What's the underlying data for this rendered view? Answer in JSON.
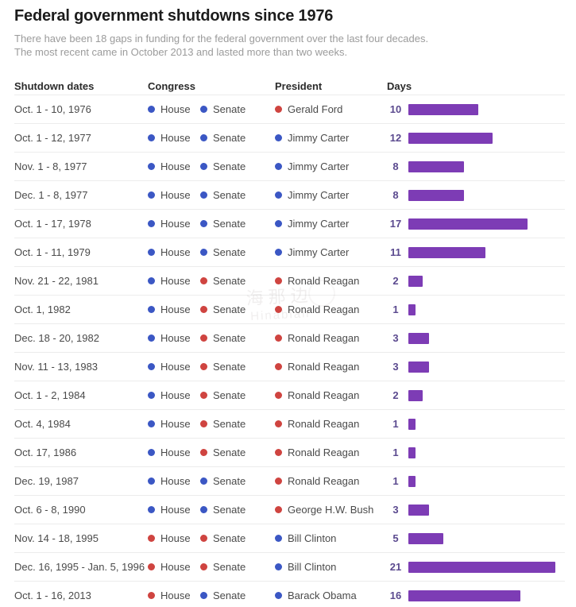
{
  "page": {
    "title": "Federal government shutdowns since 1976",
    "subtitle_line1": "There have been 18 gaps in funding for the federal government over the last four decades.",
    "subtitle_line2": "The most recent came in October 2013 and lasted more than two weeks."
  },
  "columns": {
    "dates": "Shutdown dates",
    "congress": "Congress",
    "president": "President",
    "days": "Days"
  },
  "labels": {
    "house": "House",
    "senate": "Senate"
  },
  "party_colors": {
    "democrat": "#3b57c4",
    "republican": "#cf4440"
  },
  "bar_color": "#7d3cb5",
  "day_number_color": "#5b4a8f",
  "watermark": {
    "line1": "海那边",
    "line2": "Hinabian"
  },
  "rows": [
    {
      "dates": "Oct. 1 - 10, 1976",
      "house_party": "democrat",
      "senate_party": "democrat",
      "president": "Gerald Ford",
      "president_party": "republican",
      "days": 10
    },
    {
      "dates": "Oct. 1 - 12, 1977",
      "house_party": "democrat",
      "senate_party": "democrat",
      "president": "Jimmy Carter",
      "president_party": "democrat",
      "days": 12
    },
    {
      "dates": "Nov. 1 - 8, 1977",
      "house_party": "democrat",
      "senate_party": "democrat",
      "president": "Jimmy Carter",
      "president_party": "democrat",
      "days": 8
    },
    {
      "dates": "Dec. 1 - 8, 1977",
      "house_party": "democrat",
      "senate_party": "democrat",
      "president": "Jimmy Carter",
      "president_party": "democrat",
      "days": 8
    },
    {
      "dates": "Oct. 1 - 17, 1978",
      "house_party": "democrat",
      "senate_party": "democrat",
      "president": "Jimmy Carter",
      "president_party": "democrat",
      "days": 17
    },
    {
      "dates": "Oct. 1 - 11, 1979",
      "house_party": "democrat",
      "senate_party": "democrat",
      "president": "Jimmy Carter",
      "president_party": "democrat",
      "days": 11
    },
    {
      "dates": "Nov. 21 - 22, 1981",
      "house_party": "democrat",
      "senate_party": "republican",
      "president": "Ronald Reagan",
      "president_party": "republican",
      "days": 2
    },
    {
      "dates": "Oct. 1, 1982",
      "house_party": "democrat",
      "senate_party": "republican",
      "president": "Ronald Reagan",
      "president_party": "republican",
      "days": 1
    },
    {
      "dates": "Dec. 18 - 20, 1982",
      "house_party": "democrat",
      "senate_party": "republican",
      "president": "Ronald Reagan",
      "president_party": "republican",
      "days": 3
    },
    {
      "dates": "Nov. 11 - 13, 1983",
      "house_party": "democrat",
      "senate_party": "republican",
      "president": "Ronald Reagan",
      "president_party": "republican",
      "days": 3
    },
    {
      "dates": "Oct. 1 - 2, 1984",
      "house_party": "democrat",
      "senate_party": "republican",
      "president": "Ronald Reagan",
      "president_party": "republican",
      "days": 2
    },
    {
      "dates": "Oct. 4, 1984",
      "house_party": "democrat",
      "senate_party": "republican",
      "president": "Ronald Reagan",
      "president_party": "republican",
      "days": 1
    },
    {
      "dates": "Oct. 17, 1986",
      "house_party": "democrat",
      "senate_party": "republican",
      "president": "Ronald Reagan",
      "president_party": "republican",
      "days": 1
    },
    {
      "dates": "Dec. 19, 1987",
      "house_party": "democrat",
      "senate_party": "democrat",
      "president": "Ronald Reagan",
      "president_party": "republican",
      "days": 1
    },
    {
      "dates": "Oct. 6 - 8, 1990",
      "house_party": "democrat",
      "senate_party": "democrat",
      "president": "George H.W. Bush",
      "president_party": "republican",
      "days": 3
    },
    {
      "dates": "Nov. 14 - 18, 1995",
      "house_party": "republican",
      "senate_party": "republican",
      "president": "Bill Clinton",
      "president_party": "democrat",
      "days": 5
    },
    {
      "dates": "Dec. 16, 1995 - Jan. 5, 1996",
      "house_party": "republican",
      "senate_party": "republican",
      "president": "Bill Clinton",
      "president_party": "democrat",
      "days": 21
    },
    {
      "dates": "Oct. 1 - 16, 2013",
      "house_party": "republican",
      "senate_party": "democrat",
      "president": "Barack Obama",
      "president_party": "democrat",
      "days": 16
    }
  ],
  "chart_data": {
    "type": "bar",
    "orientation": "horizontal",
    "title": "Federal government shutdowns since 1976",
    "subtitle": "There have been 18 gaps in funding for the federal government over the last four decades. The most recent came in October 2013 and lasted more than two weeks.",
    "categories": [
      "Oct. 1 - 10, 1976",
      "Oct. 1 - 12, 1977",
      "Nov. 1 - 8, 1977",
      "Dec. 1 - 8, 1977",
      "Oct. 1 - 17, 1978",
      "Oct. 1 - 11, 1979",
      "Nov. 21 - 22, 1981",
      "Oct. 1, 1982",
      "Dec. 18 - 20, 1982",
      "Nov. 11 - 13, 1983",
      "Oct. 1 - 2, 1984",
      "Oct. 4, 1984",
      "Oct. 17, 1986",
      "Dec. 19, 1987",
      "Oct. 6 - 8, 1990",
      "Nov. 14 - 18, 1995",
      "Dec. 16, 1995 - Jan. 5, 1996",
      "Oct. 1 - 16, 2013"
    ],
    "values": [
      10,
      12,
      8,
      8,
      17,
      11,
      2,
      1,
      3,
      3,
      2,
      1,
      1,
      1,
      3,
      5,
      21,
      16
    ],
    "xlabel": "Days",
    "ylabel": "Shutdown dates",
    "xlim": [
      0,
      21
    ],
    "grid": false,
    "legend": false,
    "bar_color": "#7d3cb5",
    "data_labels": true
  }
}
